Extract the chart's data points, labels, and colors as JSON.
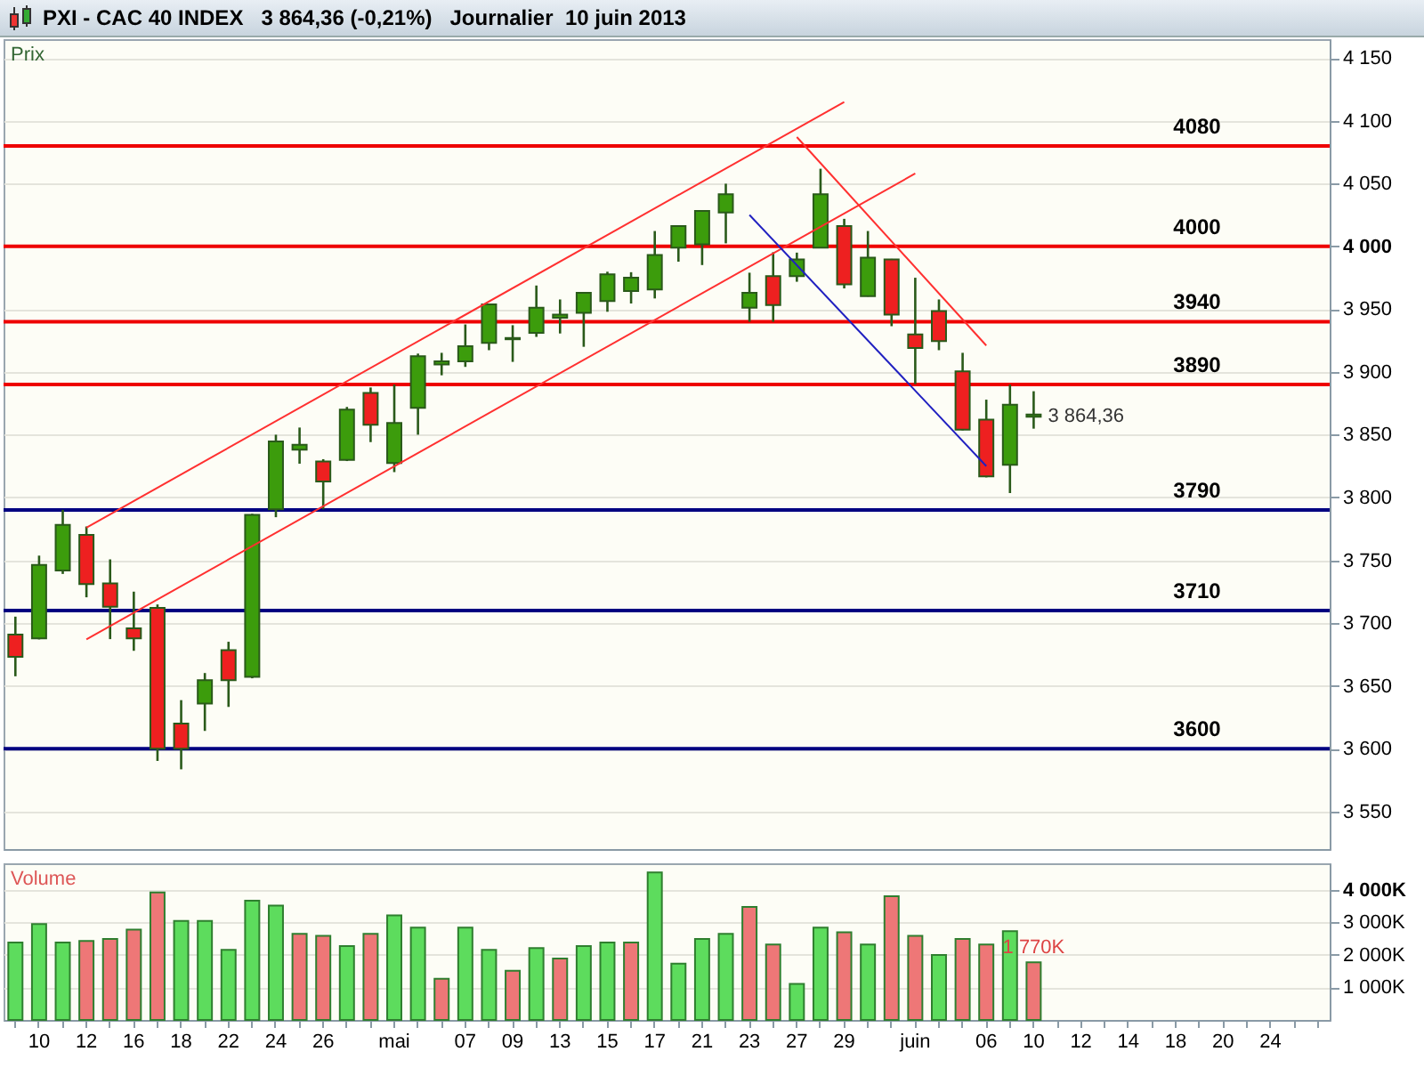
{
  "chart_data": [
    {
      "type": "candlestick",
      "title": "PXI - CAC 40 INDEX   3 864,36 (-0,21%)   Journalier  10 juin 2013",
      "ylabel": "Prix",
      "categories": [
        null,
        "10",
        null,
        "12",
        null,
        "16",
        null,
        "18",
        null,
        "22",
        null,
        "24",
        null,
        "26",
        null,
        null,
        "mai",
        null,
        null,
        "07",
        null,
        "09",
        null,
        "13",
        null,
        "15",
        null,
        "17",
        null,
        "21",
        null,
        "23",
        null,
        "27",
        null,
        "29",
        null,
        null,
        "juin",
        null,
        null,
        "06",
        null,
        "10",
        null,
        "12",
        null,
        "14",
        null,
        "18",
        null,
        "20",
        null,
        "24",
        null,
        null
      ],
      "ohlc": [
        [
          3690.8,
          3705.1,
          3657.6,
          3673.1
        ],
        [
          3687.8,
          3753.7,
          3687,
          3746.3
        ],
        [
          3741.8,
          3790.2,
          3739.1,
          3778.2
        ],
        [
          3770.2,
          3776.9,
          3720.5,
          3731.1
        ],
        [
          3731.6,
          3750.7,
          3687.2,
          3713
        ],
        [
          3695.7,
          3725,
          3677.9,
          3687.8
        ],
        [
          3712.1,
          3714.8,
          3590.2,
          3600
        ],
        [
          3620,
          3638.6,
          3583.5,
          3600
        ],
        [
          3635.9,
          3660.2,
          3614.1,
          3654.5
        ],
        [
          3678.5,
          3685.1,
          3633.2,
          3654.5
        ],
        [
          3657.2,
          3787,
          3656,
          3786.2
        ],
        [
          3790.6,
          3850,
          3784.3,
          3844.7
        ],
        [
          3838,
          3855.7,
          3826.9,
          3842
        ],
        [
          3828.7,
          3830.5,
          3790.6,
          3812.8
        ],
        [
          3830,
          3872.1,
          3829,
          3869.9
        ],
        [
          3883.2,
          3887.6,
          3844.1,
          3858
        ],
        [
          3827.4,
          3889.9,
          3820.2,
          3859.3
        ],
        [
          3871.3,
          3914.6,
          3850,
          3912.5
        ],
        [
          3905.9,
          3915.2,
          3897.3,
          3908.5
        ],
        [
          3908.5,
          3937.8,
          3904,
          3920.5
        ],
        [
          3923.1,
          3954.1,
          3917.3,
          3953.7
        ],
        [
          3926,
          3937.2,
          3908,
          3927
        ],
        [
          3931.1,
          3968.8,
          3927.9,
          3951.1
        ],
        [
          3943.1,
          3957.7,
          3930.6,
          3945.7
        ],
        [
          3947.1,
          3963.5,
          3920,
          3963
        ],
        [
          3956.4,
          3979.8,
          3947.9,
          3977.7
        ],
        [
          3964.4,
          3979.4,
          3954.5,
          3975
        ],
        [
          3965.7,
          4012.2,
          3958.5,
          3993.1
        ],
        [
          3998.9,
          4016.5,
          3987.8,
          4016.2
        ],
        [
          4001.6,
          4028.5,
          3985.1,
          4028.2
        ],
        [
          4026.9,
          4049.9,
          4002.4,
          4041.5
        ],
        [
          3951.1,
          3979,
          3939.9,
          3963
        ],
        [
          3976.3,
          3995.3,
          3939.9,
          3953.2
        ],
        [
          3976.3,
          3995,
          3971.8,
          3989.6
        ],
        [
          3998.9,
          4061.8,
          3998.5,
          4041.5
        ],
        [
          4016.2,
          4021.9,
          3966.5,
          3969.7
        ],
        [
          3960.4,
          4012.2,
          3960,
          3991
        ],
        [
          3989.6,
          3990,
          3936.4,
          3945.7
        ],
        [
          3929.8,
          3975,
          3890.3,
          3919.1
        ],
        [
          3948.4,
          3957.7,
          3917.3,
          3924.5
        ],
        [
          3900.5,
          3915.2,
          3853.5,
          3854
        ],
        [
          3862,
          3877.9,
          3816,
          3816.8
        ],
        [
          3826.1,
          3889.9,
          3803.5,
          3873.9
        ],
        [
          3866,
          3884.6,
          3854.8,
          3864.36
        ],
        null,
        null,
        null,
        null,
        null,
        null,
        null,
        null,
        null,
        null,
        null,
        null
      ],
      "colors": [
        "#ee2020",
        "#3c9c0c",
        "#3c9c0c",
        "#ee2020",
        "#ee2020",
        "#ee2020",
        "#ee2020",
        "#ee2020",
        "#3c9c0c",
        "#ee2020",
        "#3c9c0c",
        "#3c9c0c",
        "#3c9c0c",
        "#ee2020",
        "#3c9c0c",
        "#ee2020",
        "#3c9c0c",
        "#3c9c0c",
        "#3c9c0c",
        "#3c9c0c",
        "#3c9c0c",
        "#3c9c0c",
        "#3c9c0c",
        "#3c9c0c",
        "#3c9c0c",
        "#3c9c0c",
        "#3c9c0c",
        "#3c9c0c",
        "#3c9c0c",
        "#3c9c0c",
        "#3c9c0c",
        "#3c9c0c",
        "#ee2020",
        "#3c9c0c",
        "#3c9c0c",
        "#ee2020",
        "#3c9c0c",
        "#ee2020",
        "#ee2020",
        "#ee2020",
        "#ee2020",
        "#ee2020",
        "#3c9c0c",
        "#3c9c0c",
        null,
        null,
        null,
        null,
        null,
        null,
        null,
        null,
        null,
        null,
        null,
        null
      ],
      "value_labels": [
        null,
        null,
        null,
        null,
        null,
        null,
        null,
        null,
        null,
        null,
        null,
        null,
        null,
        null,
        null,
        null,
        null,
        null,
        null,
        null,
        null,
        null,
        null,
        null,
        null,
        null,
        null,
        null,
        null,
        null,
        null,
        null,
        null,
        null,
        null,
        null,
        null,
        null,
        null,
        null,
        null,
        null,
        null,
        "3 864,36",
        null,
        null,
        null,
        null,
        null,
        null,
        null,
        null,
        null,
        null,
        null,
        null
      ],
      "series": [
        {
          "type": "line",
          "color": "#ff3030",
          "x": [
            "12",
            "29"
          ],
          "values": [
            3776,
            4115
          ]
        },
        {
          "type": "line",
          "color": "#ff3030",
          "x": [
            "12",
            "juin"
          ],
          "values": [
            3687,
            4058
          ]
        },
        {
          "type": "line",
          "color": "#ff3030",
          "x": [
            "27",
            "06"
          ],
          "values": [
            4087,
            3921
          ]
        },
        {
          "type": "line",
          "color": "#2020c0",
          "x": [
            "23",
            "06"
          ],
          "values": [
            4025,
            3825
          ]
        }
      ],
      "ref_lines": [
        {
          "axis": "y",
          "value": 4080,
          "label": "4080",
          "color": "#ee0000"
        },
        {
          "axis": "y",
          "value": 4000,
          "label": "4000",
          "color": "#ee0000"
        },
        {
          "axis": "y",
          "value": 3940,
          "label": "3940",
          "color": "#ee0000"
        },
        {
          "axis": "y",
          "value": 3890,
          "label": "3890",
          "color": "#ee0000"
        },
        {
          "axis": "y",
          "value": 3790,
          "label": "3790",
          "color": "#000080"
        },
        {
          "axis": "y",
          "value": 3710,
          "label": "3710",
          "color": "#000080"
        },
        {
          "axis": "y",
          "value": 3600,
          "label": "3600",
          "color": "#000080"
        }
      ],
      "ylim": [
        3520,
        4165
      ],
      "yticks": [
        {
          "value": 3550,
          "label": "3 550"
        },
        {
          "value": 3600,
          "label": "3 600"
        },
        {
          "value": 3650,
          "label": "3 650"
        },
        {
          "value": 3700,
          "label": "3 700"
        },
        {
          "value": 3750,
          "label": "3 750"
        },
        {
          "value": 3800,
          "label": "3 800"
        },
        {
          "value": 3850,
          "label": "3 850"
        },
        {
          "value": 3900,
          "label": "3 900"
        },
        {
          "value": 3950,
          "label": "3 950"
        },
        {
          "value": 4000,
          "label": "4 000"
        },
        {
          "value": 4050,
          "label": "4 050"
        },
        {
          "value": 4100,
          "label": "4 100"
        },
        {
          "value": 4150,
          "label": "4 150"
        }
      ],
      "grid": "y",
      "tick_labels": "y"
    },
    {
      "type": "bar",
      "title": "Volume",
      "categories": [
        null,
        "10",
        null,
        "12",
        null,
        "16",
        null,
        "18",
        null,
        "22",
        null,
        "24",
        null,
        "26",
        null,
        null,
        "mai",
        null,
        null,
        "07",
        null,
        "09",
        null,
        "13",
        null,
        "15",
        null,
        "17",
        null,
        "21",
        null,
        "23",
        null,
        "27",
        null,
        "29",
        null,
        null,
        "juin",
        null,
        null,
        "06",
        null,
        "10",
        null,
        "12",
        null,
        "14",
        null,
        "18",
        null,
        "20",
        null,
        "24",
        null,
        null
      ],
      "values": [
        2380,
        2950,
        2380,
        2430,
        2490,
        2780,
        3920,
        3050,
        3050,
        2160,
        3670,
        3520,
        2650,
        2590,
        2270,
        2650,
        3220,
        2840,
        1270,
        2840,
        2160,
        1510,
        2210,
        1890,
        2270,
        2380,
        2380,
        4540,
        1730,
        2490,
        2650,
        3480,
        2320,
        1110,
        2840,
        2700,
        2320,
        3810,
        2590,
        2000,
        2490,
        2320,
        2730,
        1770,
        null,
        null,
        null,
        null,
        null,
        null,
        null,
        null,
        null,
        null,
        null,
        null
      ],
      "colors": [
        "#5ddc5d",
        "#5ddc5d",
        "#5ddc5d",
        "#ee7777",
        "#ee7777",
        "#ee7777",
        "#ee7777",
        "#5ddc5d",
        "#5ddc5d",
        "#5ddc5d",
        "#5ddc5d",
        "#5ddc5d",
        "#ee7777",
        "#ee7777",
        "#5ddc5d",
        "#ee7777",
        "#5ddc5d",
        "#5ddc5d",
        "#ee7777",
        "#5ddc5d",
        "#5ddc5d",
        "#ee7777",
        "#5ddc5d",
        "#ee7777",
        "#5ddc5d",
        "#5ddc5d",
        "#ee7777",
        "#5ddc5d",
        "#5ddc5d",
        "#5ddc5d",
        "#5ddc5d",
        "#ee7777",
        "#ee7777",
        "#5ddc5d",
        "#5ddc5d",
        "#ee7777",
        "#5ddc5d",
        "#ee7777",
        "#ee7777",
        "#5ddc5d",
        "#ee7777",
        "#ee7777",
        "#5ddc5d",
        "#ee7777",
        null,
        null,
        null,
        null,
        null,
        null,
        null,
        null,
        null,
        null,
        null,
        null
      ],
      "value_labels": [
        null,
        null,
        null,
        null,
        null,
        null,
        null,
        null,
        null,
        null,
        null,
        null,
        null,
        null,
        null,
        null,
        null,
        null,
        null,
        null,
        null,
        null,
        null,
        null,
        null,
        null,
        null,
        null,
        null,
        null,
        null,
        null,
        null,
        null,
        null,
        null,
        null,
        null,
        null,
        null,
        null,
        null,
        null,
        "1 770K",
        null,
        null,
        null,
        null,
        null,
        null,
        null,
        null,
        null,
        null,
        null,
        null
      ],
      "ylim": [
        0,
        4820
      ],
      "yticks": [
        {
          "value": 1000,
          "label": "1 000K"
        },
        {
          "value": 2000,
          "label": "2 000K"
        },
        {
          "value": 3000,
          "label": "3 000K"
        },
        {
          "value": 4000,
          "label": "4 000K"
        }
      ],
      "grid": "y"
    }
  ]
}
